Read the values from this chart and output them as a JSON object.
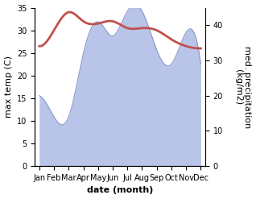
{
  "months": [
    "Jan",
    "Feb",
    "Mar",
    "Apr",
    "May",
    "Jun",
    "Jul",
    "Aug",
    "Sep",
    "Oct",
    "Nov",
    "Dec"
  ],
  "x": [
    0,
    1,
    2,
    3,
    4,
    5,
    6,
    7,
    8,
    9,
    10,
    11
  ],
  "temperature": [
    26.5,
    30.0,
    34.0,
    32.0,
    31.5,
    32.0,
    30.5,
    30.5,
    30.0,
    28.0,
    26.5,
    26.0
  ],
  "precipitation": [
    20,
    14,
    14,
    32,
    41,
    37,
    44,
    44,
    33,
    29,
    38,
    29
  ],
  "temp_color": "#c0504d",
  "precip_color": "#b8c4e8",
  "precip_edge_color": "#8898cc",
  "ylabel_left": "max temp (C)",
  "ylabel_right": "med. precipitation\n(kg/m2)",
  "xlabel": "date (month)",
  "ylim_left": [
    0,
    35
  ],
  "ylim_right": [
    0,
    45
  ],
  "yticks_left": [
    0,
    5,
    10,
    15,
    20,
    25,
    30,
    35
  ],
  "yticks_right": [
    0,
    10,
    20,
    30,
    40
  ],
  "bg_color": "#ffffff",
  "temp_linewidth": 2.0,
  "xlabel_fontsize": 8,
  "ylabel_fontsize": 8,
  "tick_fontsize": 7
}
